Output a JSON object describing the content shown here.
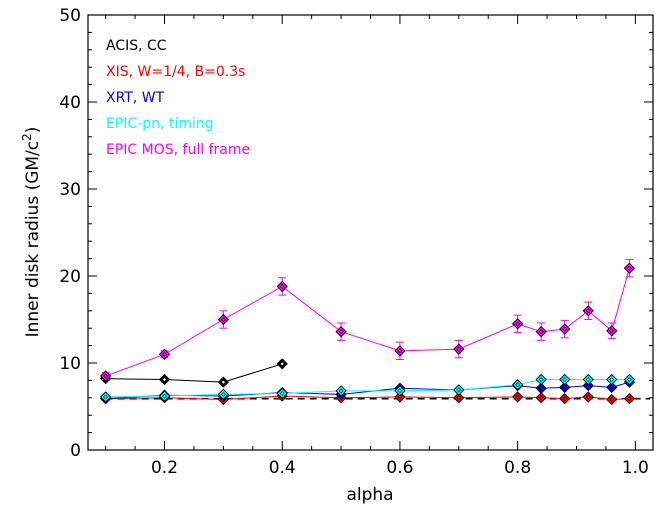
{
  "chart_data": {
    "type": "scatter",
    "xlabel": "alpha",
    "ylabel_main": "Inner disk radius (GM/c",
    "ylabel_sup": "2",
    "ylabel_end": ")",
    "xlim": [
      0.07,
      1.03
    ],
    "ylim": [
      0,
      50
    ],
    "xticks": [
      0.2,
      0.4,
      0.6,
      0.8,
      1.0
    ],
    "xtick_labels": [
      "0.2",
      "0.4",
      "0.6",
      "0.8",
      "1.0"
    ],
    "yticks": [
      0,
      10,
      20,
      30,
      40,
      50
    ],
    "ytick_labels": [
      "0",
      "10",
      "20",
      "30",
      "40",
      "50"
    ],
    "reference_line": {
      "y": 5.9,
      "style": "dashed",
      "color": "#000000"
    },
    "legend_position": "top-left",
    "series": [
      {
        "name": "ACIS, CC",
        "color": "#000000",
        "x": [
          0.1,
          0.2,
          0.3,
          0.4
        ],
        "y": [
          8.2,
          8.1,
          7.8,
          9.9
        ],
        "err": [
          0,
          0,
          0,
          0
        ]
      },
      {
        "name": "XIS, W=1/4, B=0.3s",
        "color": "#ff0000",
        "x": [
          0.1,
          0.2,
          0.3,
          0.4,
          0.5,
          0.6,
          0.7,
          0.8,
          0.84,
          0.88,
          0.92,
          0.96,
          0.99
        ],
        "y": [
          5.9,
          6.0,
          5.8,
          6.2,
          6.0,
          6.1,
          6.0,
          6.1,
          6.0,
          5.9,
          6.1,
          5.8,
          5.9
        ],
        "err": [
          0,
          0,
          0,
          0,
          0,
          0,
          0,
          0,
          0,
          0,
          0,
          0,
          0
        ]
      },
      {
        "name": "XRT, WT",
        "color": "#0000ff",
        "x": [
          0.1,
          0.2,
          0.3,
          0.4,
          0.5,
          0.6,
          0.7,
          0.8,
          0.84,
          0.88,
          0.92,
          0.96,
          0.99
        ],
        "y": [
          5.9,
          6.3,
          6.2,
          6.6,
          6.4,
          7.1,
          6.9,
          7.4,
          7.1,
          7.2,
          7.4,
          7.2,
          7.8
        ],
        "err": [
          0,
          0,
          0,
          0,
          0,
          0,
          0,
          0,
          0,
          0,
          0,
          0,
          0
        ]
      },
      {
        "name": "EPIC-pn, timing",
        "color": "#00ffff",
        "x": [
          0.1,
          0.2,
          0.3,
          0.4,
          0.5,
          0.6,
          0.7,
          0.8,
          0.84,
          0.88,
          0.92,
          0.96,
          0.99
        ],
        "y": [
          6.1,
          6.2,
          6.4,
          6.5,
          6.8,
          6.8,
          6.9,
          7.5,
          8.1,
          8.1,
          8.1,
          8.1,
          8.1
        ],
        "err": [
          0,
          0,
          0,
          0,
          0,
          0,
          0,
          0,
          0,
          0,
          0,
          0,
          0
        ]
      },
      {
        "name": "EPIC MOS, full frame",
        "color": "#ff00ff",
        "x": [
          0.1,
          0.2,
          0.3,
          0.4,
          0.5,
          0.6,
          0.7,
          0.8,
          0.84,
          0.88,
          0.92,
          0.96,
          0.99
        ],
        "y": [
          8.5,
          11.0,
          15.0,
          18.8,
          13.6,
          11.4,
          11.6,
          14.5,
          13.6,
          13.9,
          16.0,
          13.7,
          20.9
        ],
        "err": [
          0.4,
          0.4,
          1.0,
          1.0,
          1.0,
          1.0,
          1.0,
          1.0,
          1.0,
          1.0,
          1.0,
          0.9,
          1.0
        ]
      }
    ]
  }
}
